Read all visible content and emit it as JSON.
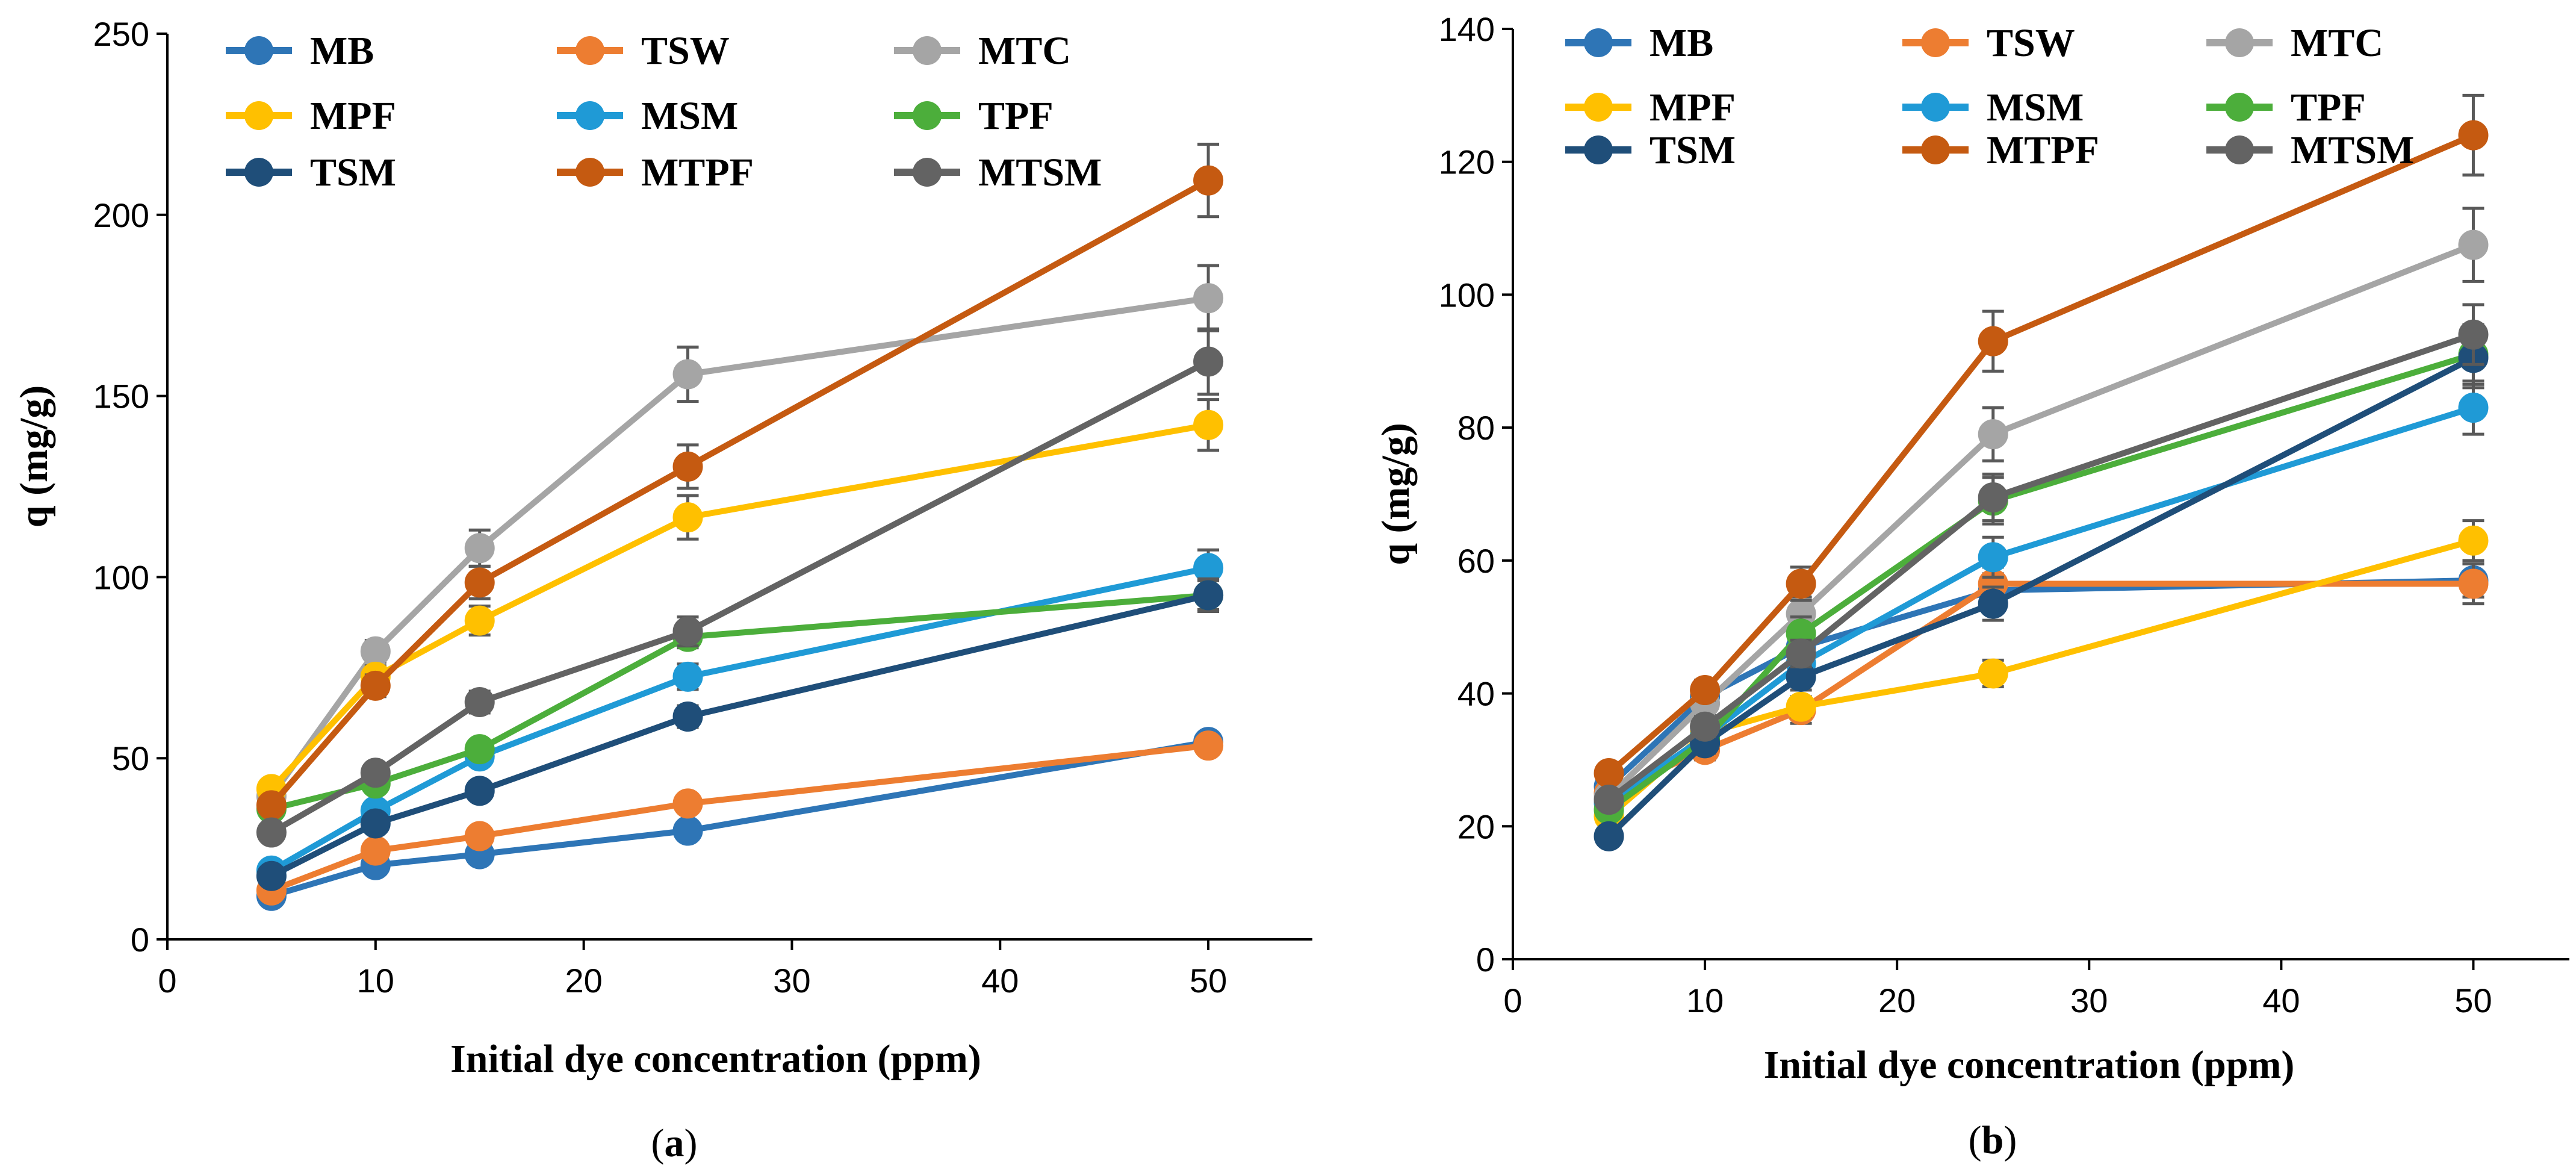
{
  "chart_data": [
    {
      "type": "line",
      "panel_label": {
        "open": "(",
        "letter": "a",
        "close": ")"
      },
      "xlabel": "Initial dye concentration (ppm)",
      "ylabel": "q (mg/g)",
      "xlim": [
        0,
        55
      ],
      "ylim": [
        0,
        250
      ],
      "xticks": [
        0,
        10,
        20,
        30,
        40,
        50
      ],
      "yticks": [
        0,
        50,
        100,
        150,
        200,
        250
      ],
      "grid": false,
      "legend_position": "top",
      "x": [
        5,
        10,
        15,
        25,
        50
      ],
      "series": [
        {
          "name": "MB",
          "color": "#2e75b6",
          "values": [
            12,
            20.5,
            23.5,
            30,
            54.5
          ],
          "errors": [
            1.5,
            1.5,
            2,
            2,
            2
          ]
        },
        {
          "name": "TSW",
          "color": "#ed7d31",
          "values": [
            13.5,
            24.5,
            28.5,
            37.5,
            53.5
          ],
          "errors": [
            1.5,
            2,
            2,
            2,
            2
          ]
        },
        {
          "name": "MTC",
          "color": "#a5a5a5",
          "values": [
            39.5,
            79.5,
            108,
            156,
            177
          ],
          "errors": [
            2,
            3,
            5,
            7.5,
            9
          ]
        },
        {
          "name": "MPF",
          "color": "#ffc000",
          "values": [
            41.5,
            72.5,
            88,
            116.5,
            142
          ],
          "errors": [
            2,
            3,
            4,
            6,
            7
          ]
        },
        {
          "name": "MSM",
          "color": "#1f9ad6",
          "values": [
            19,
            35.5,
            50.5,
            72.5,
            102.5
          ],
          "errors": [
            1.5,
            2,
            2.5,
            3.5,
            5
          ]
        },
        {
          "name": "TPF",
          "color": "#4cae3b",
          "values": [
            36,
            43,
            52.5,
            83.5,
            95
          ],
          "errors": [
            1.5,
            2,
            2.5,
            3,
            4
          ]
        },
        {
          "name": "TSM",
          "color": "#1f4e79",
          "values": [
            17.5,
            32,
            41,
            61.5,
            95
          ],
          "errors": [
            1.5,
            2,
            2.5,
            3,
            4.5
          ]
        },
        {
          "name": "MTPF",
          "color": "#c55a11",
          "values": [
            37,
            70,
            98.5,
            130.5,
            209.5
          ],
          "errors": [
            2,
            3,
            4.5,
            6,
            10
          ]
        },
        {
          "name": "MTSM",
          "color": "#636363",
          "values": [
            29.5,
            46,
            65.5,
            85,
            159.5
          ],
          "errors": [
            1.5,
            2,
            3,
            4,
            9
          ]
        }
      ]
    },
    {
      "type": "line",
      "panel_label": {
        "open": "(",
        "letter": "b",
        "close": ")"
      },
      "xlabel": "Initial dye concentration (ppm)",
      "ylabel": "q (mg/g)",
      "xlim": [
        0,
        55
      ],
      "ylim": [
        0,
        140
      ],
      "xticks": [
        0,
        10,
        20,
        30,
        40,
        50
      ],
      "yticks": [
        0,
        20,
        40,
        60,
        80,
        100,
        120,
        140
      ],
      "grid": false,
      "legend_position": "top",
      "x": [
        5,
        10,
        15,
        25,
        50
      ],
      "series": [
        {
          "name": "MB",
          "color": "#2e75b6",
          "values": [
            26,
            39.5,
            47,
            55.5,
            57
          ],
          "errors": [
            1.2,
            1.5,
            2,
            2.5,
            2.5
          ]
        },
        {
          "name": "TSW",
          "color": "#ed7d31",
          "values": [
            25,
            31.5,
            37.5,
            56.5,
            56.5
          ],
          "errors": [
            1.2,
            1.5,
            2,
            2.5,
            3
          ]
        },
        {
          "name": "MTC",
          "color": "#a5a5a5",
          "values": [
            24.5,
            38.5,
            52,
            79,
            107.5
          ],
          "errors": [
            1.2,
            1.5,
            2.5,
            4,
            5.5
          ]
        },
        {
          "name": "MPF",
          "color": "#ffc000",
          "values": [
            21.5,
            34,
            38,
            43,
            63
          ],
          "errors": [
            1.2,
            1.5,
            1.5,
            2,
            3
          ]
        },
        {
          "name": "MSM",
          "color": "#1f9ad6",
          "values": [
            23.5,
            33.5,
            44.5,
            60.5,
            83
          ],
          "errors": [
            1.2,
            1.5,
            2,
            3,
            4
          ]
        },
        {
          "name": "TPF",
          "color": "#4cae3b",
          "values": [
            22.5,
            33,
            49,
            69,
            91
          ],
          "errors": [
            1.2,
            1.5,
            2.5,
            3.5,
            4.5
          ]
        },
        {
          "name": "TSM",
          "color": "#1f4e79",
          "values": [
            18.5,
            32.5,
            42.5,
            53.5,
            90.5
          ],
          "errors": [
            1,
            1.5,
            2,
            2.5,
            4.5
          ]
        },
        {
          "name": "MTPF",
          "color": "#c55a11",
          "values": [
            28,
            40.5,
            56.5,
            93,
            124
          ],
          "errors": [
            1.2,
            1.5,
            2.5,
            4.5,
            6
          ]
        },
        {
          "name": "MTSM",
          "color": "#636363",
          "values": [
            24,
            35,
            46,
            69.5,
            94
          ],
          "errors": [
            1.2,
            1.5,
            2,
            3.5,
            4.5
          ]
        }
      ]
    }
  ]
}
